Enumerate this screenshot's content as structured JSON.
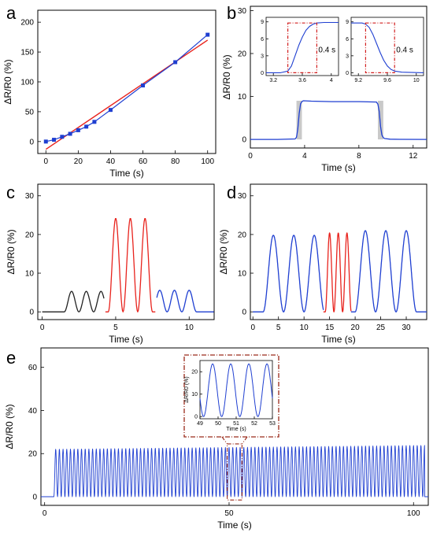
{
  "figure": {
    "panel_letters": [
      "a",
      "b",
      "c",
      "d",
      "e"
    ]
  },
  "chart_data": [
    {
      "panel": "a",
      "type": "scatter",
      "xlabel": "Time (s)",
      "ylabel": "ΔR/R0 (%)",
      "xlim": [
        -5,
        105
      ],
      "ylim": [
        -20,
        220
      ],
      "xticks": [
        0,
        20,
        40,
        60,
        80,
        100
      ],
      "yticks": [
        0,
        50,
        100,
        150,
        200
      ],
      "grid": false,
      "colors": {
        "data": "#1f3fd1",
        "fit": "#e8231d"
      },
      "series": [
        {
          "kind": "points-with-line",
          "x": [
            0,
            5,
            10,
            15,
            20,
            25,
            30,
            40,
            60,
            80,
            100
          ],
          "y": [
            0,
            3,
            8,
            13,
            19,
            25,
            33,
            53,
            94,
            133,
            179
          ]
        },
        {
          "kind": "fit-line",
          "x": [
            0,
            100
          ],
          "y": [
            -13,
            170
          ]
        }
      ]
    },
    {
      "panel": "b",
      "type": "line",
      "xlabel": "Time (s)",
      "ylabel": "ΔR/R0 (%)",
      "xlim": [
        0,
        13
      ],
      "ylim": [
        -2,
        31
      ],
      "xticks": [
        0,
        4,
        8,
        12
      ],
      "yticks": [
        0,
        10,
        20,
        30
      ],
      "grid": false,
      "colors": {
        "line": "#1f3fd1",
        "shade": "#c9c9c9",
        "box": "#d21f1f"
      },
      "shaded_x": [
        [
          3.4,
          3.8
        ],
        [
          9.4,
          9.8
        ]
      ],
      "x": [
        0,
        2,
        3.3,
        3.4,
        3.5,
        3.6,
        3.7,
        3.8,
        3.9,
        4.5,
        6,
        8,
        9.3,
        9.4,
        9.5,
        9.6,
        9.7,
        9.8,
        9.9,
        10.3,
        11,
        13
      ],
      "y": [
        0,
        0,
        0.1,
        0.5,
        2.5,
        6,
        8.3,
        8.8,
        9.0,
        8.9,
        8.8,
        8.8,
        8.7,
        8.2,
        6.5,
        3,
        1,
        0.4,
        0.2,
        0.05,
        0.02,
        0
      ],
      "insets": [
        {
          "xlim": [
            3.1,
            4.1
          ],
          "ylim": [
            -0.5,
            9.8
          ],
          "xticks": [
            3.2,
            3.6,
            4.0
          ],
          "yticks": [
            0,
            3,
            6,
            9
          ],
          "box_x": [
            3.4,
            3.8
          ],
          "box_y": [
            0,
            8.8
          ],
          "annotation": "0.4 s",
          "x": [
            3.1,
            3.3,
            3.4,
            3.45,
            3.5,
            3.55,
            3.6,
            3.65,
            3.7,
            3.75,
            3.8,
            3.9,
            4.1
          ],
          "y": [
            0,
            0,
            0.3,
            1.2,
            3,
            4.8,
            6.3,
            7.5,
            8.2,
            8.6,
            8.8,
            8.9,
            8.9
          ]
        },
        {
          "xlim": [
            9.1,
            10.1
          ],
          "ylim": [
            -0.5,
            9.8
          ],
          "xticks": [
            9.2,
            9.6,
            10.0
          ],
          "yticks": [
            0,
            3,
            6,
            9
          ],
          "box_x": [
            9.3,
            9.7
          ],
          "box_y": [
            0,
            8.8
          ],
          "annotation": "0.4 s",
          "x": [
            9.1,
            9.25,
            9.3,
            9.35,
            9.4,
            9.45,
            9.5,
            9.55,
            9.6,
            9.65,
            9.7,
            9.8,
            10.1
          ],
          "y": [
            8.8,
            8.8,
            8.6,
            8.0,
            6.8,
            5.2,
            3.6,
            2.2,
            1.2,
            0.6,
            0.3,
            0.1,
            0
          ]
        }
      ]
    },
    {
      "panel": "c",
      "type": "line",
      "xlabel": "Time (s)",
      "ylabel": "ΔR/R0 (%)",
      "xlim": [
        -0.3,
        11.7
      ],
      "ylim": [
        -2,
        33
      ],
      "xticks": [
        0,
        5,
        10
      ],
      "yticks": [
        0,
        10,
        20,
        30
      ],
      "grid": false,
      "series": [
        {
          "name": "",
          "color": "#222222",
          "segment_x": [
            0,
            4.2
          ],
          "peaks_x": [
            2,
            3,
            4
          ],
          "amplitude": 5.3
        },
        {
          "name": "",
          "color": "#e8231d",
          "segment_x": [
            4.3,
            7.7
          ],
          "peaks_x": [
            5,
            6,
            7
          ],
          "amplitude": 24.2
        },
        {
          "name": "",
          "color": "#1f3fd1",
          "segment_x": [
            7.8,
            11.7
          ],
          "peaks_x": [
            8,
            9,
            10
          ],
          "amplitude": 5.6
        }
      ]
    },
    {
      "panel": "d",
      "type": "line",
      "xlabel": "Time (s)",
      "ylabel": "ΔR/R0 (%)",
      "xlim": [
        -0.5,
        34
      ],
      "ylim": [
        -2,
        33
      ],
      "xticks": [
        0,
        5,
        10,
        15,
        20,
        25,
        30
      ],
      "yticks": [
        0,
        10,
        20,
        30
      ],
      "grid": false,
      "series": [
        {
          "name": "",
          "color": "#1f3fd1",
          "segment_x": [
            0,
            13.8
          ],
          "peaks_x": [
            4,
            8,
            12
          ],
          "amplitude": 19.8
        },
        {
          "name": "",
          "color": "#e8231d",
          "segment_x": [
            13.8,
            19.2
          ],
          "peaks_x": [
            15,
            16.7,
            18.4
          ],
          "amplitude": 20.4
        },
        {
          "name": "",
          "color": "#1f3fd1",
          "segment_x": [
            19.2,
            34
          ],
          "peaks_x": [
            22,
            26,
            30
          ],
          "amplitude": 21.0
        }
      ]
    },
    {
      "panel": "e",
      "type": "line",
      "xlabel": "Time (s)",
      "ylabel": "ΔR/R0 (%)",
      "xlim": [
        -1,
        104
      ],
      "ylim": [
        -4,
        69
      ],
      "xticks": [
        0,
        50,
        100
      ],
      "yticks": [
        0,
        20,
        40,
        60
      ],
      "grid": false,
      "color": "#1f3fd1",
      "cycle_start": 2.5,
      "cycle_end": 103,
      "period": 1.0,
      "amplitude_start": 22,
      "amplitude_end": 23.8,
      "zoom_box_x": [
        49.5,
        53.5
      ],
      "zoom_box_color": "#9a2a1a",
      "inset": {
        "xlabel": "Time (s)",
        "ylabel": "ΔR/R0 (%)",
        "xlim": [
          49,
          53
        ],
        "ylim": [
          -1,
          25
        ],
        "xticks": [
          49,
          50,
          51,
          52,
          53
        ],
        "yticks": [
          0,
          10,
          20
        ],
        "peaks_x": [
          49.7,
          50.7,
          51.7,
          52.7
        ],
        "amplitude": 23.5
      }
    }
  ]
}
